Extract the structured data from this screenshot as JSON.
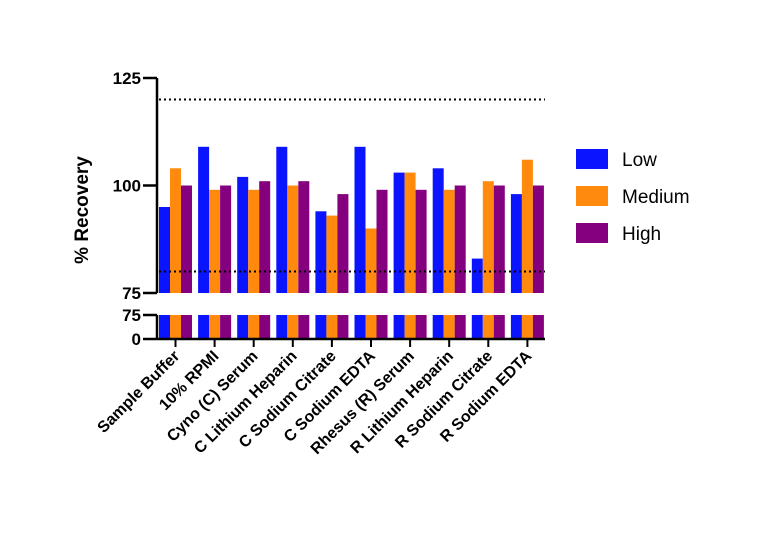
{
  "chart_data": {
    "type": "bar",
    "title": "",
    "xlabel": "",
    "ylabel": "% Recovery",
    "categories": [
      "Sample Buffer",
      "10% RPMI",
      "Cyno (C) Serum",
      "C Lithium Heparin",
      "C Sodium Citrate",
      "C Sodium EDTA",
      "Rhesus (R) Serum",
      "R Lithium Heparin",
      "R Sodium Citrate",
      "R Sodium EDTA"
    ],
    "series": [
      {
        "name": "Low",
        "color": "#0a14ff",
        "values": [
          95,
          109,
          102,
          109,
          94,
          109,
          103,
          104,
          83,
          98
        ]
      },
      {
        "name": "Medium",
        "color": "#ff8a0d",
        "values": [
          104,
          99,
          99,
          100,
          93,
          90,
          103,
          99,
          101,
          106
        ]
      },
      {
        "name": "High",
        "color": "#85007f",
        "values": [
          100,
          100,
          101,
          101,
          98,
          99,
          99,
          100,
          100,
          100
        ]
      }
    ],
    "y_axis_segments": [
      {
        "range": [
          75,
          125
        ],
        "ticks": [
          "75",
          "100",
          "125"
        ]
      },
      {
        "range": [
          0,
          75
        ],
        "ticks": [
          "0",
          "75"
        ]
      }
    ],
    "ylim": [
      0,
      125
    ],
    "y_axis_break": [
      75,
      75
    ],
    "reference_lines": [
      120,
      80
    ],
    "reference_line_style": "dotted",
    "grid": false,
    "legend_position": "right"
  }
}
